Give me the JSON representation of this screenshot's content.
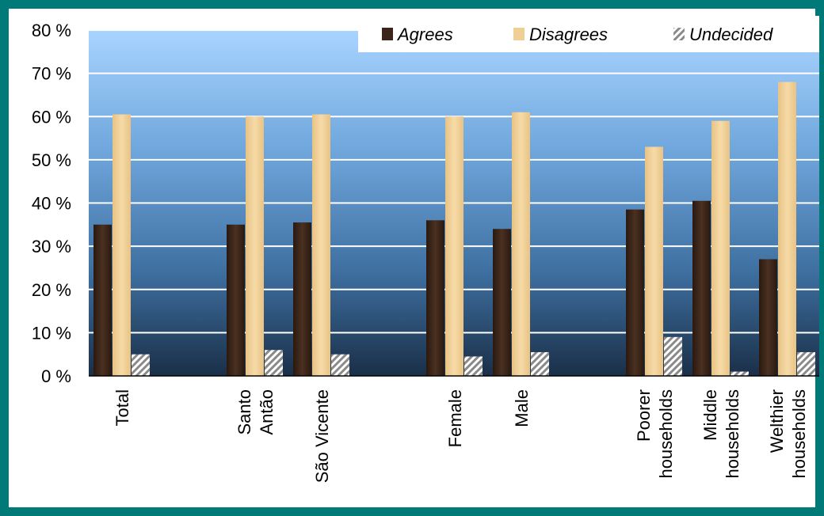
{
  "chart_data": {
    "type": "bar",
    "ylim": [
      0,
      80
    ],
    "yticks": [
      "0 %",
      "10 %",
      "20 %",
      "30 %",
      "40 %",
      "50 %",
      "60 %",
      "70 %",
      "80 %"
    ],
    "grid": true,
    "legend_position": "top-right",
    "groups": [
      {
        "categories": [
          {
            "lines": [
              "Total"
            ]
          }
        ]
      },
      {
        "categories": [
          {
            "lines": [
              "Santo",
              "Antão"
            ]
          },
          {
            "lines": [
              "São Vicente"
            ]
          }
        ]
      },
      {
        "categories": [
          {
            "lines": [
              "Female"
            ]
          },
          {
            "lines": [
              "Male"
            ]
          }
        ]
      },
      {
        "categories": [
          {
            "lines": [
              "Poorer",
              "households"
            ]
          },
          {
            "lines": [
              "Middle",
              "households"
            ]
          },
          {
            "lines": [
              "Welthier",
              "households"
            ]
          }
        ]
      }
    ],
    "categories": [
      "Total",
      "Santo Antão",
      "São Vicente",
      "Female",
      "Male",
      "Poorer households",
      "Middle households",
      "Welthier households"
    ],
    "series": [
      {
        "name": "Agrees",
        "values": [
          35,
          35,
          35.5,
          36,
          34,
          38.5,
          40.5,
          27
        ],
        "color": "#3a2518"
      },
      {
        "name": "Disagrees",
        "values": [
          60.5,
          60,
          60.5,
          60,
          61,
          53,
          59,
          68
        ],
        "color": "#f0cf95"
      },
      {
        "name": "Undecided",
        "values": [
          5,
          6,
          5,
          4.5,
          5.5,
          9,
          1,
          5.5
        ],
        "color": "#b0b0b0"
      }
    ]
  },
  "frame": {
    "border_color": "#007a78"
  }
}
